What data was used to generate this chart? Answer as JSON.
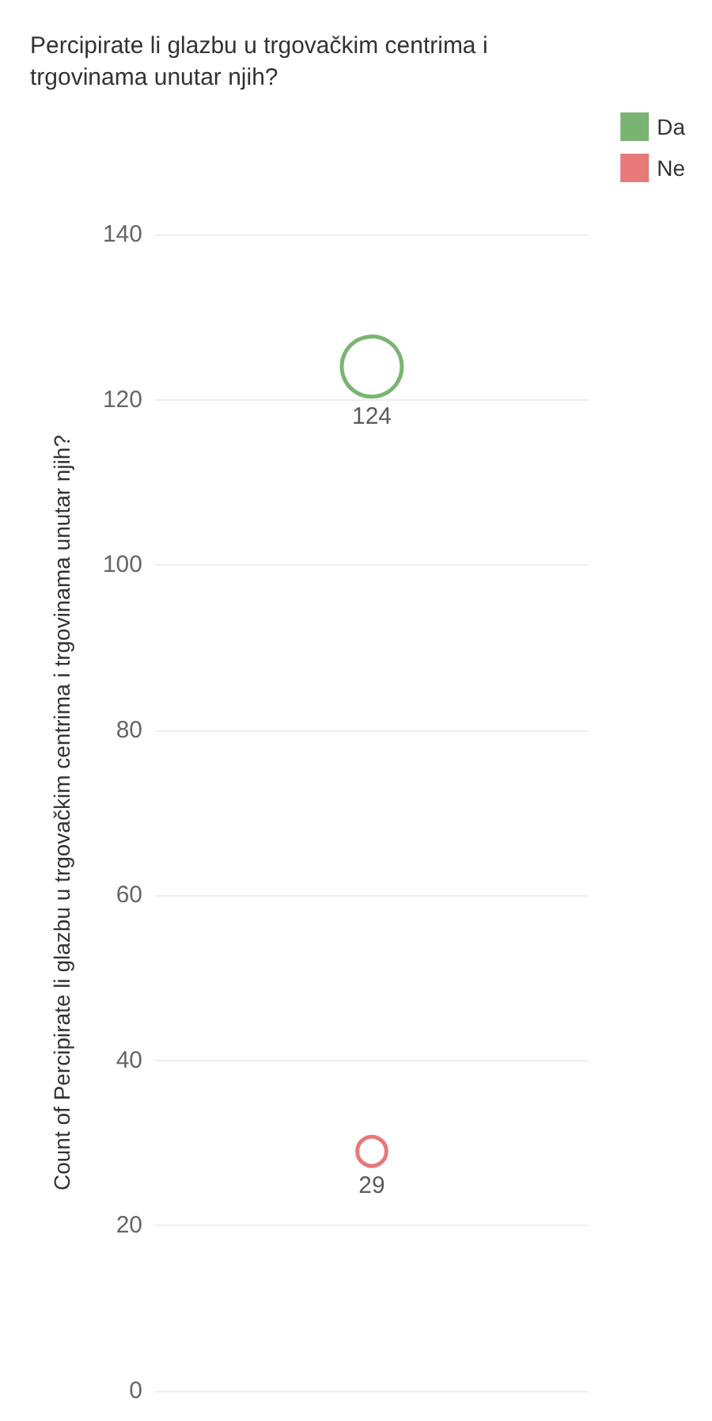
{
  "chart_data": {
    "type": "bubble",
    "title": "Percipirate li glazbu u trgovačkim centrima i trgovinama unutar njih?",
    "ylabel": "Count of Percipirate li glazbu u trgovačkim centrima i trgovinama unutar njih?",
    "categories": [
      null
    ],
    "series": [
      {
        "name": "Da",
        "color": "#59a14f",
        "values": [
          124
        ],
        "sizes": [
          1
        ]
      },
      {
        "name": "Ne",
        "color": "#e15759",
        "values": [
          29
        ],
        "sizes": [
          0.234
        ]
      }
    ],
    "ylim": [
      0,
      140
    ],
    "yticks": [
      0,
      20,
      40,
      60,
      80,
      100,
      120,
      140
    ],
    "grid": "y",
    "legend": "top right",
    "data_labels": true,
    "marker": "circle"
  }
}
